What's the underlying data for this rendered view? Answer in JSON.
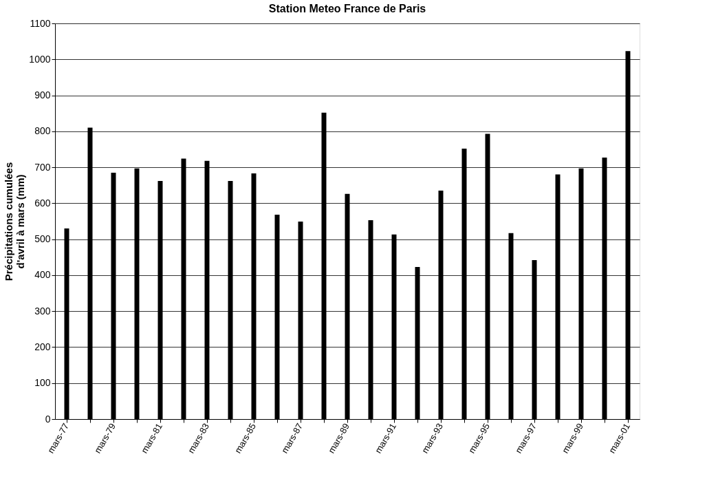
{
  "chart_data": {
    "type": "bar",
    "title": "Station Meteo France de Paris",
    "ylabel": "Précipitations cumulées\nd'avril à mars (mm)",
    "categories": [
      "mars-77",
      null,
      "mars-79",
      null,
      "mars-81",
      null,
      "mars-83",
      null,
      "mars-85",
      null,
      "mars-87",
      null,
      "mars-89",
      null,
      "mars-91",
      null,
      "mars-93",
      null,
      "mars-95",
      null,
      "mars-97",
      null,
      "mars-99",
      null,
      "mars-01"
    ],
    "values": [
      530,
      810,
      685,
      697,
      662,
      724,
      718,
      662,
      683,
      568,
      549,
      852,
      626,
      553,
      513,
      423,
      635,
      752,
      793,
      517,
      442,
      680,
      697,
      727,
      1023
    ],
    "color": "#000000",
    "ylim": [
      0,
      1100
    ],
    "yticks": [
      0,
      100,
      200,
      300,
      400,
      500,
      600,
      700,
      800,
      900,
      1000,
      1100
    ],
    "grid": "y"
  }
}
